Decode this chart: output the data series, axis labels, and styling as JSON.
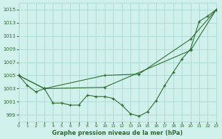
{
  "title": "Graphe pression niveau de la mer (hPa)",
  "background_color": "#cff0eb",
  "grid_color": "#a8d8d3",
  "line_color": "#2d6b2d",
  "text_color": "#2d6b2d",
  "xlim": [
    0,
    23
  ],
  "ylim": [
    998.0,
    1016.0
  ],
  "yticks": [
    999,
    1001,
    1003,
    1005,
    1007,
    1009,
    1011,
    1013,
    1015
  ],
  "xticks": [
    0,
    1,
    2,
    3,
    4,
    5,
    6,
    7,
    8,
    9,
    10,
    11,
    12,
    13,
    14,
    15,
    16,
    17,
    18,
    19,
    20,
    21,
    22,
    23
  ],
  "series1_x": [
    0,
    1,
    2,
    3,
    4,
    5,
    6,
    7,
    8,
    9,
    10,
    11,
    12,
    13,
    14,
    15,
    16,
    17,
    18,
    19,
    20,
    21,
    22,
    23
  ],
  "series1_y": [
    1005.0,
    1003.5,
    1002.5,
    1003.0,
    1000.8,
    1000.8,
    1000.5,
    1000.5,
    1002.0,
    1001.8,
    1001.8,
    1001.5,
    1000.5,
    999.2,
    998.8,
    999.5,
    1001.2,
    1003.5,
    1005.5,
    1007.5,
    1009.0,
    1013.2,
    1014.0,
    1015.0
  ],
  "series2_x": [
    0,
    3,
    10,
    14,
    20,
    23
  ],
  "series2_y": [
    1005.0,
    1003.0,
    1005.0,
    1005.2,
    1010.5,
    1015.0
  ],
  "series3_x": [
    0,
    3,
    10,
    20,
    23
  ],
  "series3_y": [
    1005.0,
    1003.0,
    1003.2,
    1008.8,
    1015.0
  ]
}
